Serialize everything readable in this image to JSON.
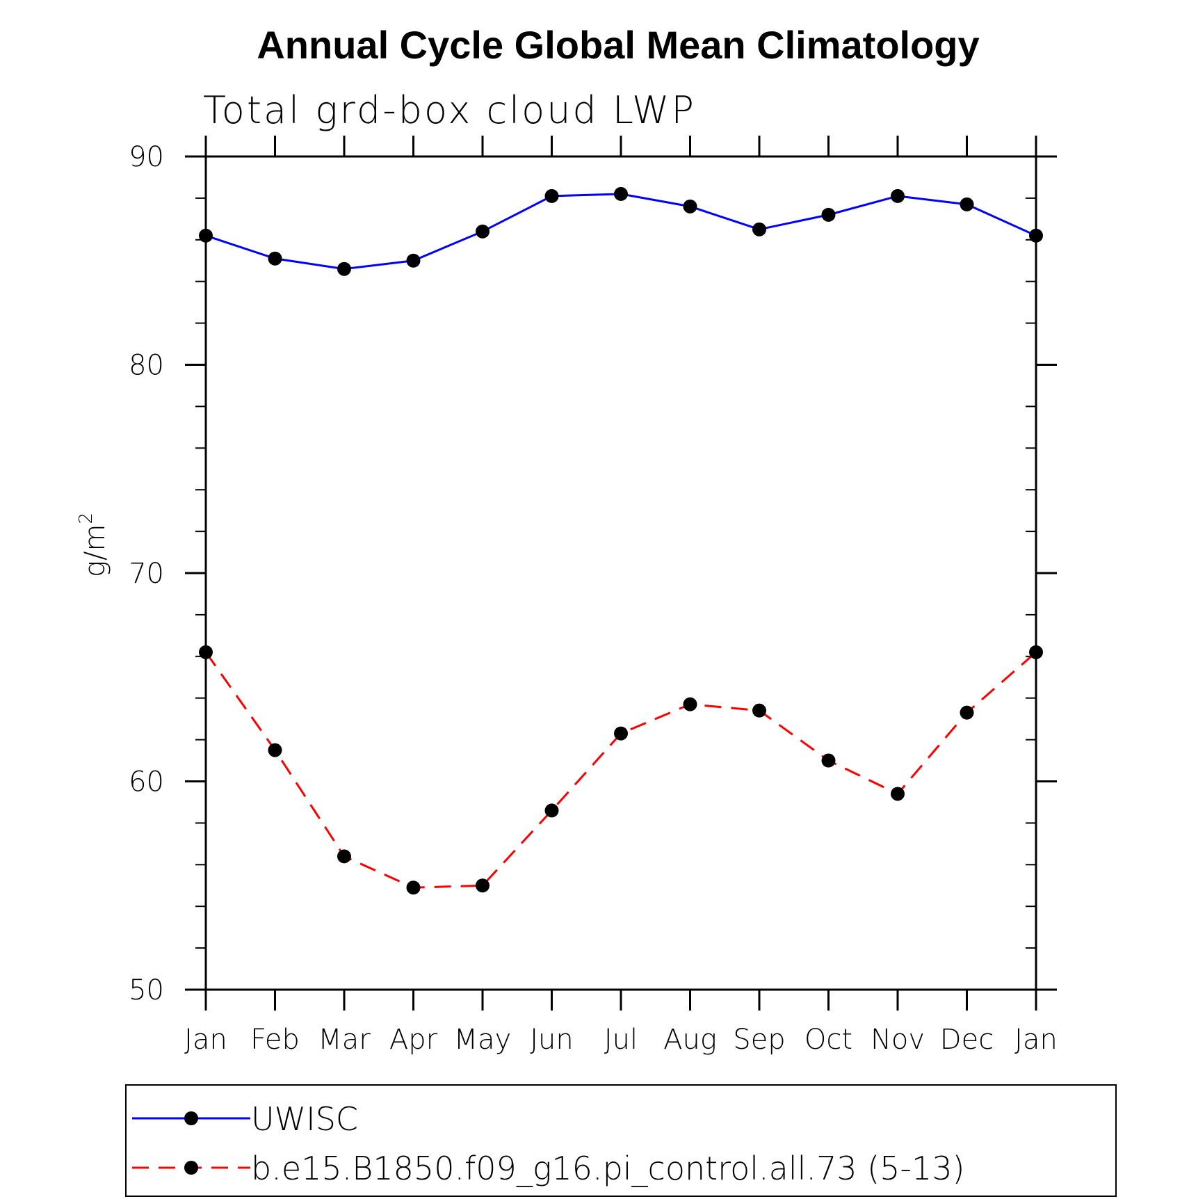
{
  "chart_data": {
    "type": "line",
    "title": "Annual Cycle Global Mean Climatology",
    "subtitle": "Total grd-box cloud LWP",
    "ylabel_base": "g/m",
    "ylabel_sup": "2",
    "xlabel": "",
    "categories": [
      "Jan",
      "Feb",
      "Mar",
      "Apr",
      "May",
      "Jun",
      "Jul",
      "Aug",
      "Sep",
      "Oct",
      "Nov",
      "Dec",
      "Jan"
    ],
    "ylim": [
      50,
      90
    ],
    "yticks": [
      50,
      60,
      70,
      80,
      90
    ],
    "yticks_labels": [
      "50",
      "60",
      "70",
      "80",
      "90"
    ],
    "grid": false,
    "legend_position": "bottom",
    "series": [
      {
        "name": "UWISC",
        "color": "#0000ff",
        "style": "solid",
        "marker": "circle",
        "values": [
          86.2,
          85.1,
          84.6,
          85.0,
          86.4,
          88.1,
          88.2,
          87.6,
          86.5,
          87.2,
          88.1,
          87.7,
          86.2
        ]
      },
      {
        "name": "b.e15.B1850.f09_g16.pi_control.all.73 (5-13)",
        "color": "#ff0000",
        "style": "dashed",
        "marker": "circle",
        "values": [
          66.2,
          61.5,
          56.4,
          54.9,
          55.0,
          58.6,
          62.3,
          63.7,
          63.4,
          61.0,
          59.4,
          63.3,
          66.2
        ]
      }
    ]
  }
}
